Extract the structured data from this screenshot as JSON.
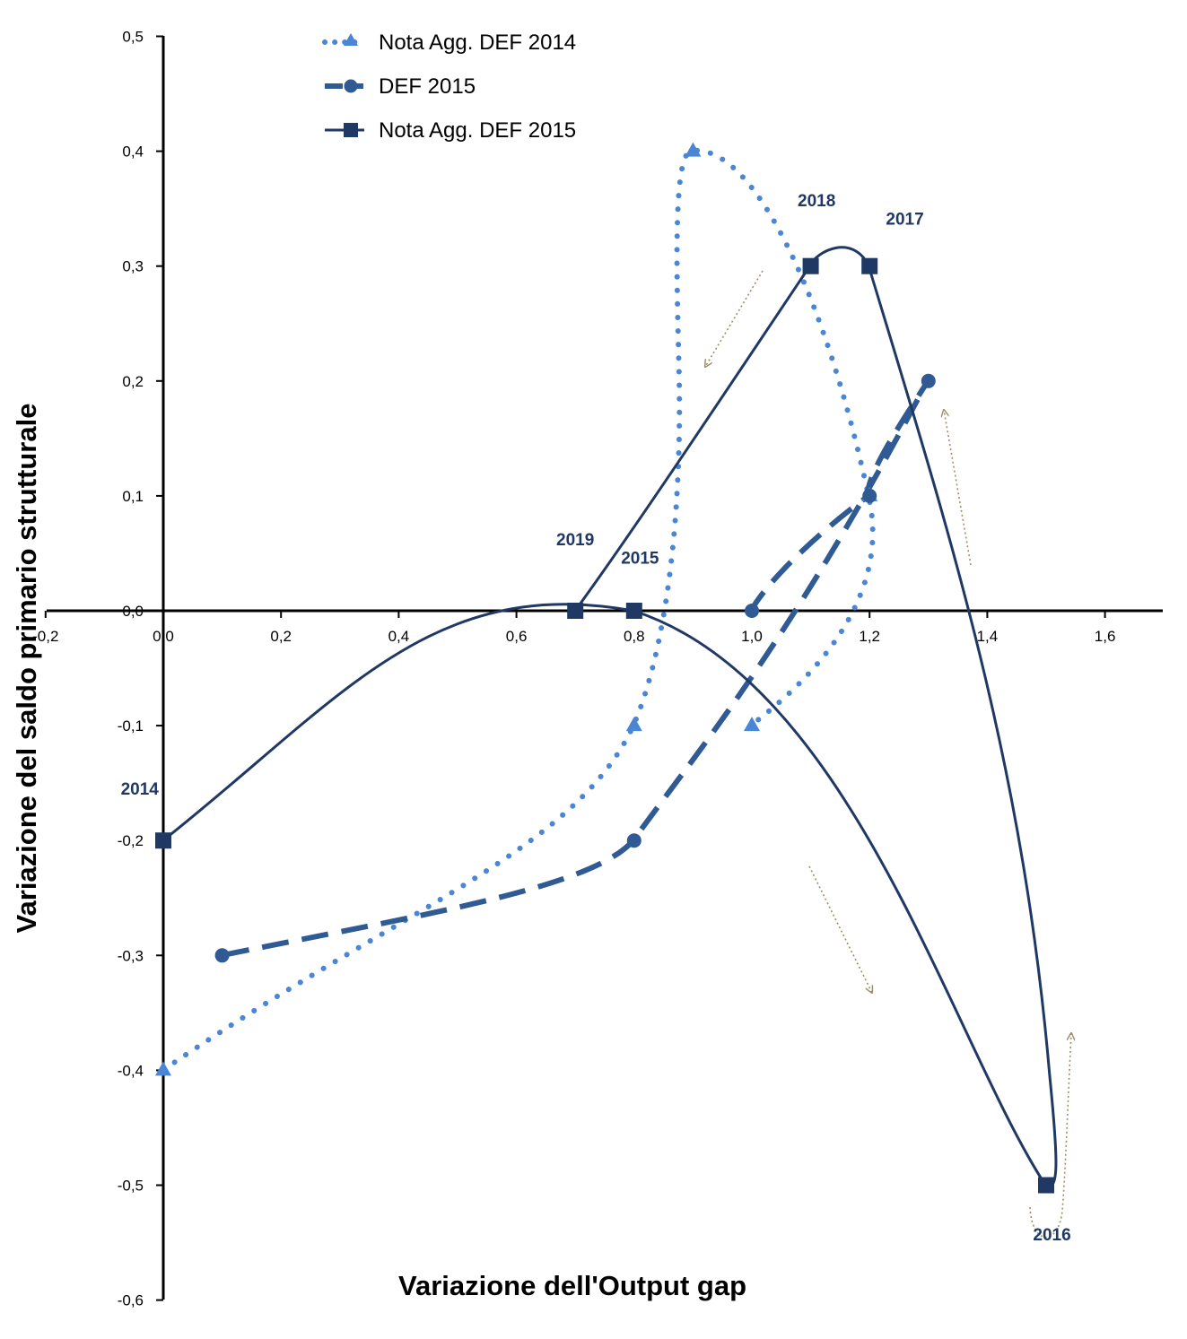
{
  "chart_data": {
    "type": "scatter",
    "xlabel": "Variazione dell'Output gap",
    "ylabel": "Variazione del saldo primario strutturale",
    "xlim": [
      -0.2,
      1.7
    ],
    "ylim": [
      -0.6,
      0.5
    ],
    "x_ticks": [
      "-0,2",
      "0,0",
      "0,2",
      "0,4",
      "0,6",
      "0,8",
      "1,0",
      "1,2",
      "1,4",
      "1,6"
    ],
    "y_ticks": [
      "0,5",
      "0,4",
      "0,3",
      "0,2",
      "0,1",
      "0,0",
      "-0,1",
      "-0,2",
      "-0,3",
      "-0,4",
      "-0,5",
      "-0,6"
    ],
    "grid": false,
    "legend_position": "top-left",
    "series": [
      {
        "name": "Nota Agg. DEF 2014",
        "style": "dotted",
        "marker": "triangle",
        "color": "#4a86d4",
        "points": [
          [
            0.0,
            -0.4
          ],
          [
            0.8,
            -0.1
          ],
          [
            0.9,
            0.4
          ],
          [
            1.2,
            0.1
          ],
          [
            1.0,
            -0.1
          ]
        ]
      },
      {
        "name": "DEF 2015",
        "style": "dashed",
        "marker": "circle",
        "color": "#2f5a94",
        "points": [
          [
            0.1,
            -0.3
          ],
          [
            0.8,
            -0.2
          ],
          [
            1.3,
            0.2
          ],
          [
            1.2,
            0.1
          ],
          [
            1.0,
            0.0
          ]
        ]
      },
      {
        "name": "Nota Agg. DEF 2015",
        "style": "solid",
        "marker": "square",
        "color": "#1f3864",
        "points": [
          [
            0.0,
            -0.2
          ],
          [
            0.8,
            0.0
          ],
          [
            1.5,
            -0.5
          ],
          [
            1.2,
            0.3
          ],
          [
            1.1,
            0.3
          ],
          [
            0.7,
            0.0
          ]
        ]
      }
    ],
    "annotations": [
      {
        "text": "2014",
        "x": -0.04,
        "y": -0.16
      },
      {
        "text": "2015",
        "x": 0.81,
        "y": 0.041
      },
      {
        "text": "2016",
        "x": 1.51,
        "y": -0.548
      },
      {
        "text": "2017",
        "x": 1.26,
        "y": 0.336
      },
      {
        "text": "2018",
        "x": 1.11,
        "y": 0.352
      },
      {
        "text": "2019",
        "x": 0.7,
        "y": 0.057
      }
    ]
  }
}
